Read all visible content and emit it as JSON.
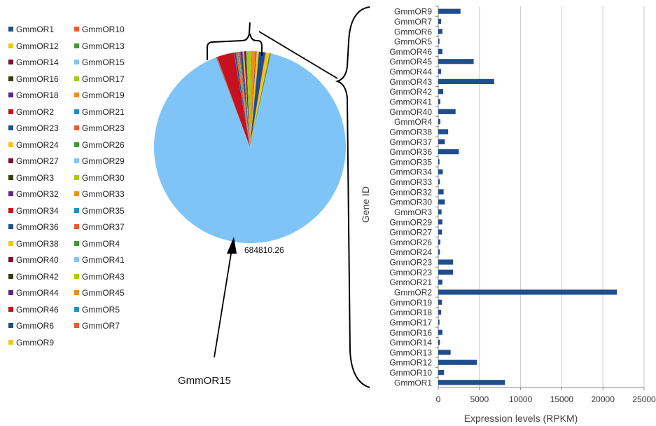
{
  "pie": {
    "type": "pie",
    "center_label": "684810.26",
    "annotation": "GmmOR15",
    "slices": [
      {
        "name": "GmmOR1",
        "value": 8100,
        "color": "#1f4e8c"
      },
      {
        "name": "GmmOR10",
        "value": 700,
        "color": "#f2582a"
      },
      {
        "name": "GmmOR12",
        "value": 4700,
        "color": "#f5c518"
      },
      {
        "name": "GmmOR13",
        "value": 1500,
        "color": "#3f9a2e"
      },
      {
        "name": "GmmOR14",
        "value": 200,
        "color": "#7a1030"
      },
      {
        "name": "GmmOR15",
        "value": 684810.26,
        "color": "#7fc4f7"
      },
      {
        "name": "GmmOR16",
        "value": 500,
        "color": "#3b3b10"
      },
      {
        "name": "GmmOR17",
        "value": 150,
        "color": "#a8c81a"
      },
      {
        "name": "GmmOR18",
        "value": 350,
        "color": "#5a2a86"
      },
      {
        "name": "GmmOR19",
        "value": 450,
        "color": "#f28c1a"
      },
      {
        "name": "GmmOR2",
        "value": 21700,
        "color": "#c8101e"
      },
      {
        "name": "GmmOR21",
        "value": 500,
        "color": "#1a90c8"
      },
      {
        "name": "GmmOR23",
        "value": 1800,
        "color": "#1f4e8c"
      },
      {
        "name": "GmmOR23",
        "value": 1800,
        "color": "#f2582a"
      },
      {
        "name": "GmmOR24",
        "value": 200,
        "color": "#f5c518"
      },
      {
        "name": "GmmOR26",
        "value": 250,
        "color": "#3f9a2e"
      },
      {
        "name": "GmmOR27",
        "value": 450,
        "color": "#7a1030"
      },
      {
        "name": "GmmOR29",
        "value": 500,
        "color": "#7fc4f7"
      },
      {
        "name": "GmmOR3",
        "value": 400,
        "color": "#3b3b10"
      },
      {
        "name": "GmmOR30",
        "value": 800,
        "color": "#a8c81a"
      },
      {
        "name": "GmmOR32",
        "value": 650,
        "color": "#5a2a86"
      },
      {
        "name": "GmmOR33",
        "value": 200,
        "color": "#f28c1a"
      },
      {
        "name": "GmmOR34",
        "value": 550,
        "color": "#c8101e"
      },
      {
        "name": "GmmOR35",
        "value": 150,
        "color": "#1a90c8"
      },
      {
        "name": "GmmOR36",
        "value": 2500,
        "color": "#1f4e8c"
      },
      {
        "name": "GmmOR37",
        "value": 800,
        "color": "#f2582a"
      },
      {
        "name": "GmmOR38",
        "value": 1200,
        "color": "#f5c518"
      },
      {
        "name": "GmmOR4",
        "value": 250,
        "color": "#3f9a2e"
      },
      {
        "name": "GmmOR40",
        "value": 2100,
        "color": "#7a1030"
      },
      {
        "name": "GmmOR41",
        "value": 250,
        "color": "#7fc4f7"
      },
      {
        "name": "GmmOR42",
        "value": 600,
        "color": "#3b3b10"
      },
      {
        "name": "GmmOR43",
        "value": 6800,
        "color": "#a8c81a"
      },
      {
        "name": "GmmOR44",
        "value": 350,
        "color": "#5a2a86"
      },
      {
        "name": "GmmOR45",
        "value": 4300,
        "color": "#f28c1a"
      },
      {
        "name": "GmmOR46",
        "value": 500,
        "color": "#c8101e"
      },
      {
        "name": "GmmOR5",
        "value": 150,
        "color": "#1a90c8"
      },
      {
        "name": "GmmOR6",
        "value": 500,
        "color": "#1f4e8c"
      },
      {
        "name": "GmmOR7",
        "value": 350,
        "color": "#f2582a"
      },
      {
        "name": "GmmOR9",
        "value": 2700,
        "color": "#f5c518"
      }
    ]
  },
  "chart_data": {
    "type": "bar",
    "orientation": "horizontal",
    "ylabel": "Gene ID",
    "xlabel": "Expression levels (RPKM)",
    "xlim": [
      0,
      25000
    ],
    "xticks": [
      0,
      5000,
      10000,
      15000,
      20000,
      25000
    ],
    "grid": true,
    "bar_color": "#1f4e8c",
    "categories": [
      "GmmOR9",
      "GmmOR7",
      "GmmOR6",
      "GmmOR5",
      "GmmOR46",
      "GmmOR45",
      "GmmOR44",
      "GmmOR43",
      "GmmOR42",
      "GmmOR41",
      "GmmOR40",
      "GmmOR4",
      "GmmOR38",
      "GmmOR37",
      "GmmOR36",
      "GmmOR35",
      "GmmOR34",
      "GmmOR33",
      "GmmOR32",
      "GmmOR30",
      "GmmOR3",
      "GmmOR29",
      "GmmOR27",
      "GmmOR26",
      "GmmOR24",
      "GmmOR23",
      "GmmOR23",
      "GmmOR21",
      "GmmOR2",
      "GmmOR19",
      "GmmOR18",
      "GmmOR17",
      "GmmOR16",
      "GmmOR14",
      "GmmOR13",
      "GmmOR12",
      "GmmOR10",
      "GmmOR1"
    ],
    "values": [
      2700,
      350,
      500,
      150,
      500,
      4300,
      350,
      6800,
      600,
      250,
      2100,
      250,
      1200,
      800,
      2500,
      150,
      550,
      200,
      650,
      800,
      400,
      500,
      450,
      250,
      200,
      1800,
      1800,
      500,
      21700,
      450,
      350,
      150,
      500,
      200,
      1500,
      4700,
      700,
      8100
    ]
  }
}
